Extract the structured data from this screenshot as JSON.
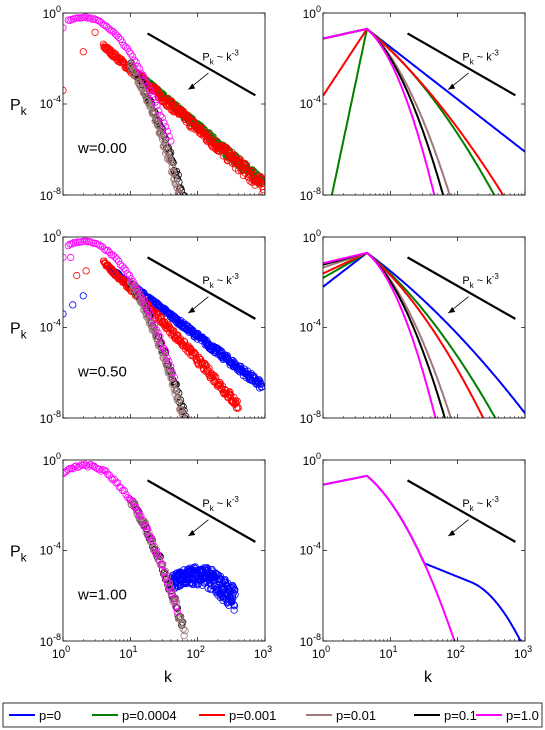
{
  "chart_data": {
    "type": "scatter",
    "figure": {
      "xlabel": "k",
      "ylabel": "P",
      "ylabel_sub": "k",
      "xlim": [
        1,
        1000
      ],
      "ylim": [
        1e-08,
        1
      ],
      "xscale": "log",
      "yscale": "log",
      "grid": false,
      "legend_position": "bottom",
      "x_ticks": [
        1,
        10,
        100,
        1000
      ],
      "x_tick_exponents": [
        "0",
        "1",
        "2",
        "3"
      ],
      "y_ticks": [
        1,
        0.0001,
        1e-08
      ],
      "y_tick_exponents": [
        "0",
        "-4",
        "-8"
      ],
      "tick_base": "10",
      "guide_label": "P",
      "guide_label_sub": "k",
      "guide_label_rest": " ~ k",
      "guide_label_exp": "-3",
      "guide_slope": -3
    },
    "series": [
      {
        "name": "p=0",
        "color": "#0000ff"
      },
      {
        "name": "p=0.0004",
        "color": "#007f00"
      },
      {
        "name": "p=0.001",
        "color": "#ff0000"
      },
      {
        "name": "p=0.01",
        "color": "#a07878"
      },
      {
        "name": "p=0.1",
        "color": "#000000"
      },
      {
        "name": "p=1.0",
        "color": "#ff00ff"
      }
    ],
    "rows": [
      {
        "w_label": "w=0.00"
      },
      {
        "w_label": "w=0.50"
      },
      {
        "w_label": "w=1.00"
      }
    ]
  }
}
